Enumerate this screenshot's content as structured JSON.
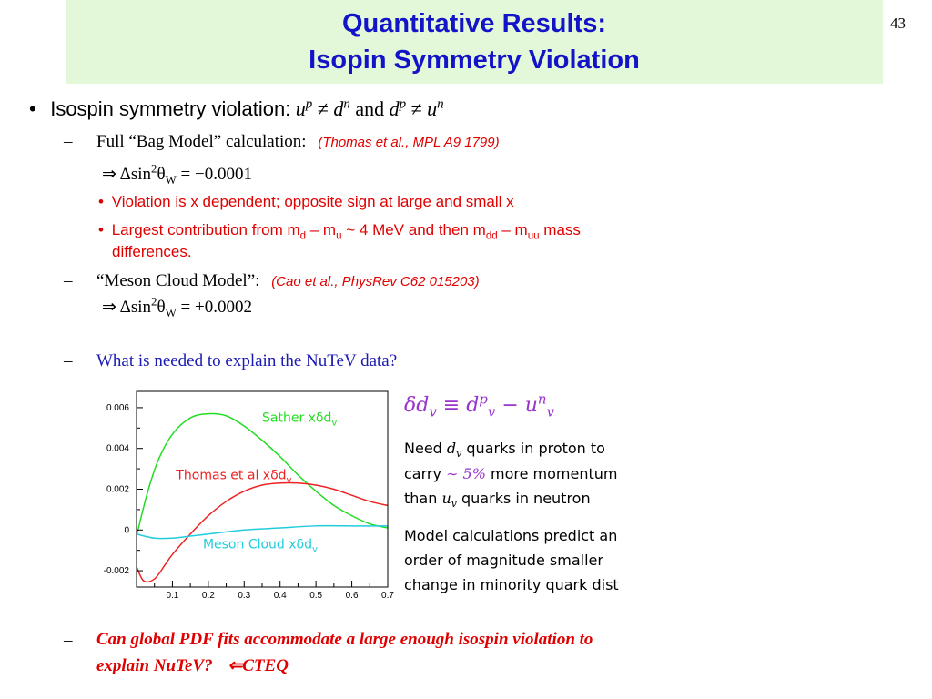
{
  "page_number": "43",
  "title": {
    "line1": "Quantitative Results:",
    "line2": "Isopin Symmetry Violation"
  },
  "bullet": {
    "mark": "•",
    "lead": "Isospin symmetry violation:",
    "conj": "and",
    "neq": "≠",
    "u": "u",
    "d": "d",
    "p": "p",
    "n": "n"
  },
  "bag_model": {
    "dash": "–",
    "label": "Full “Bag Model” calculation:",
    "ref": "(Thomas et al., MPL A9 1799)",
    "result_prefix": "⇒ Δsin",
    "result_exp": "2",
    "result_theta": "θ",
    "result_sub": "W",
    "result_value": " = −0.0001",
    "sub_bullets": {
      "dot": "•",
      "item1": "Violation is x dependent; opposite sign at large and small x",
      "item2_a": "Largest contribution from m",
      "item2_sub_d": "d",
      "item2_b": " – m",
      "item2_sub_u": "u",
      "item2_c": " ~ 4 MeV and then m",
      "item2_sub_dd": "dd",
      "item2_d": " – m",
      "item2_sub_uu": "uu",
      "item2_e": " mass",
      "item2_cont": "differences."
    }
  },
  "meson_model": {
    "dash": "–",
    "label": "“Meson Cloud Model”:",
    "ref": "(Cao et al., PhysRev C62 015203)",
    "result_prefix": "⇒ Δsin",
    "result_exp": "2",
    "result_theta": "θ",
    "result_sub": "W",
    "result_value": " = +0.0002"
  },
  "question": {
    "dash": "–",
    "text": "What is needed to explain the NuTeV data?"
  },
  "final": {
    "dash": "–",
    "line1": "Can global PDF fits accommodate a large enough isospin violation to",
    "line2": "explain NuTeV?",
    "arrow": "⇐",
    "cteq": "CTEQ"
  },
  "formula": {
    "lhs": "δd",
    "lhs_sub": "v",
    "equiv": " ≡ ",
    "d": "d",
    "d_sup": "p",
    "d_sub": "v",
    "minus": " − ",
    "u": "u",
    "u_sup": "n",
    "u_sub": "v"
  },
  "notes": {
    "l1a": "Need ",
    "l1_math": "d",
    "l1_sub": "v",
    "l1b": " quarks in proton to",
    "l2a": "carry ",
    "l2_math": "∼ 5%",
    "l2b": " more momentum",
    "l3a": "than ",
    "l3_math": "u",
    "l3_sub": "v",
    "l3b": " quarks in neutron",
    "l4": "Model calculations predict an",
    "l5": "order of magnitude smaller",
    "l6": "change in minority quark dist"
  },
  "chart_data": {
    "type": "line",
    "xlim": [
      0.0,
      0.7
    ],
    "ylim": [
      -0.0028,
      0.0068
    ],
    "x_ticks": [
      0.1,
      0.2,
      0.3,
      0.4,
      0.5,
      0.6,
      0.7
    ],
    "x_tick_labels": [
      "0.1",
      "0.2",
      "0.3",
      "0.4",
      "0.5",
      "0.6",
      "0.7"
    ],
    "y_ticks": [
      -0.002,
      0,
      0.002,
      0.004,
      0.006
    ],
    "y_tick_labels": [
      "-0.002",
      "0",
      "0.002",
      "0.004",
      "0.006"
    ],
    "grid": false,
    "series": [
      {
        "name": "Sather xδd",
        "name_sub": "v",
        "color": "#22dd22",
        "label_at": [
          0.35,
          0.0053
        ],
        "x": [
          0.0,
          0.03,
          0.06,
          0.1,
          0.15,
          0.2,
          0.25,
          0.3,
          0.35,
          0.4,
          0.45,
          0.5,
          0.55,
          0.6,
          0.65,
          0.7
        ],
        "y": [
          -0.0003,
          0.0018,
          0.0034,
          0.0047,
          0.0055,
          0.0057,
          0.0056,
          0.0051,
          0.0044,
          0.0036,
          0.0027,
          0.0019,
          0.0012,
          0.0007,
          0.0003,
          0.0001
        ]
      },
      {
        "name": "Thomas et al xδd",
        "name_sub": "v",
        "color": "#ee2222",
        "label_at": [
          0.11,
          0.0025
        ],
        "x": [
          0.0,
          0.02,
          0.05,
          0.08,
          0.1,
          0.15,
          0.2,
          0.25,
          0.3,
          0.35,
          0.4,
          0.45,
          0.5,
          0.55,
          0.6,
          0.65,
          0.7
        ],
        "y": [
          -0.0018,
          -0.0025,
          -0.0024,
          -0.0017,
          -0.0012,
          -0.0002,
          0.0007,
          0.0014,
          0.0019,
          0.0022,
          0.0023,
          0.0023,
          0.0022,
          0.002,
          0.0017,
          0.0014,
          0.0012
        ]
      },
      {
        "name": "Meson Cloud xδd",
        "name_sub": "v",
        "color": "#22ccdd",
        "label_at": [
          0.185,
          -0.0009
        ],
        "x": [
          0.0,
          0.05,
          0.1,
          0.15,
          0.2,
          0.3,
          0.4,
          0.5,
          0.6,
          0.7
        ],
        "y": [
          -0.0002,
          -0.0004,
          -0.0004,
          -0.0003,
          -0.0002,
          0.0,
          0.0001,
          0.0002,
          0.0002,
          0.0002
        ]
      }
    ]
  }
}
